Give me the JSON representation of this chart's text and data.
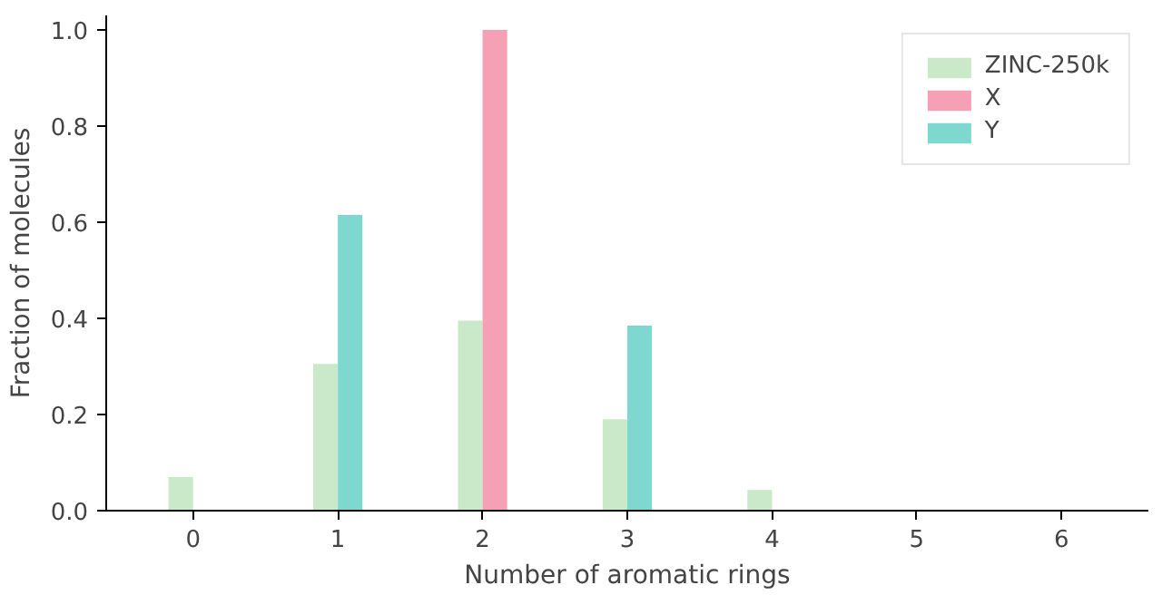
{
  "chart_data": {
    "type": "bar",
    "xlabel": "Number of aromatic rings",
    "ylabel": "Fraction of molecules",
    "categories": [
      "0",
      "1",
      "2",
      "3",
      "4",
      "5",
      "6"
    ],
    "series": [
      {
        "name": "ZINC-250k",
        "color": "#c9e9c9",
        "values": [
          0.07,
          0.305,
          0.395,
          0.19,
          0.043,
          null,
          null
        ]
      },
      {
        "name": "X",
        "color": "#f5a0b4",
        "values": [
          null,
          null,
          1.0,
          null,
          null,
          null,
          null
        ]
      },
      {
        "name": "Y",
        "color": "#7fd8d0",
        "values": [
          null,
          0.615,
          null,
          0.385,
          null,
          null,
          null
        ]
      }
    ],
    "ylim": [
      0,
      1.03
    ],
    "yticks": [
      {
        "value": 0,
        "label": "0.0"
      },
      {
        "value": 0.2,
        "label": "0.2"
      },
      {
        "value": 0.4,
        "label": "0.4"
      },
      {
        "value": 0.6,
        "label": "0.6"
      },
      {
        "value": 0.8,
        "label": "0.8"
      },
      {
        "value": 1.0,
        "label": "1.0"
      }
    ],
    "grid": false,
    "legend": "top right"
  }
}
